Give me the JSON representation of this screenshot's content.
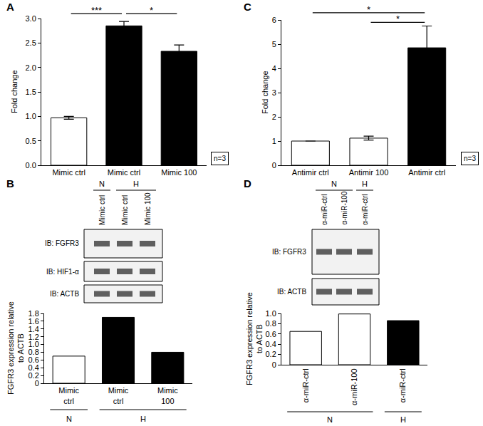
{
  "chart_data": [
    {
      "type": "bar",
      "panel": "A",
      "categories": [
        "Mimic ctrl",
        "Mimic ctrl",
        "Mimic 100"
      ],
      "values": [
        0.97,
        2.85,
        2.33
      ],
      "errors": [
        0.03,
        0.09,
        0.13
      ],
      "colors": [
        "#ffffff",
        "#000000",
        "#000000"
      ],
      "ylabel": "Fold change",
      "ylim": [
        0,
        3
      ],
      "yticks": [
        {
          "value": 0,
          "label": "0.0"
        },
        0.5,
        {
          "value": 1,
          "label": "1.0"
        },
        1.5,
        {
          "value": 2,
          "label": "2.0"
        },
        2.5,
        {
          "value": 3,
          "label": "3.0"
        }
      ],
      "significance": [
        {
          "from": 0,
          "to": 1,
          "y": 3.1,
          "label": "***"
        },
        {
          "from": 1,
          "to": 2,
          "y": 3.1,
          "label": "*"
        }
      ],
      "n_label": "n=3"
    },
    {
      "type": "bar",
      "categories": [
        "Mimic ctrl",
        "Mimic ctrl",
        "Mimic 100"
      ],
      "values": [
        0.7,
        1.7,
        0.8
      ],
      "colors": [
        "#ffffff",
        "#000000",
        "#000000"
      ],
      "ylabel": "FGFR3 expression relative to ACTB",
      "ylim": [
        0,
        1.8
      ],
      "yticks": [
        0,
        0.2,
        0.4,
        0.6,
        0.8,
        {
          "value": 1,
          "label": "1.0"
        },
        1.2,
        1.4,
        1.6,
        1.8
      ],
      "groups": [
        {
          "label": "N",
          "span": [
            0,
            0
          ]
        },
        {
          "label": "H",
          "span": [
            1,
            2
          ]
        }
      ]
    },
    {
      "type": "bar",
      "panel": "C",
      "categories": [
        "Antimir ctrl",
        "Antimir 100",
        "Antimir ctrl"
      ],
      "values": [
        1.0,
        1.12,
        4.85
      ],
      "errors": [
        0,
        0.08,
        0.9
      ],
      "colors": [
        "#ffffff",
        "#ffffff",
        "#000000"
      ],
      "ylabel": "Fold change",
      "ylim": [
        0,
        6
      ],
      "yticks": [
        0,
        1,
        2,
        3,
        4,
        5,
        6
      ],
      "significance": [
        {
          "from": 0,
          "to": 2,
          "y": 6.3,
          "label": "*"
        },
        {
          "from": 1,
          "to": 2,
          "y": 5.9,
          "label": "*"
        }
      ],
      "n_label": "n=3"
    },
    {
      "type": "bar",
      "categories": [
        "α-miR-ctrl",
        "α-miR-100",
        "α-miR-ctrl"
      ],
      "values": [
        0.65,
        0.99,
        0.86
      ],
      "colors": [
        "#ffffff",
        "#ffffff",
        "#000000"
      ],
      "ylabel": "FGFR3 expression relative to ACTB",
      "ylim": [
        0,
        1
      ],
      "yticks": [
        0,
        0.2,
        0.4,
        0.6,
        0.8,
        {
          "value": 1,
          "label": "1.0"
        }
      ],
      "groups": [
        {
          "label": "N",
          "span": [
            0,
            1
          ]
        },
        {
          "label": "H",
          "span": [
            2,
            2
          ]
        }
      ]
    }
  ],
  "blots": [
    {
      "panel": "B",
      "columns": [
        "Mimic ctrl",
        "Mimic ctrl",
        "Mimic 100"
      ],
      "groups": [
        {
          "label": "N",
          "span": [
            0,
            0
          ]
        },
        {
          "label": "H",
          "span": [
            1,
            2
          ]
        }
      ],
      "rows": [
        "IB: FGFR3",
        "IB: HIF1-α",
        "IB: ACTB"
      ]
    },
    {
      "panel": "D",
      "columns": [
        "α-miR-ctrl",
        "α-miR-100",
        "α-miR-ctrl"
      ],
      "groups": [
        {
          "label": "N",
          "span": [
            0,
            1
          ]
        },
        {
          "label": "H",
          "span": [
            2,
            2
          ]
        }
      ],
      "rows": [
        "IB: FGFR3",
        "IB: ACTB"
      ]
    }
  ]
}
